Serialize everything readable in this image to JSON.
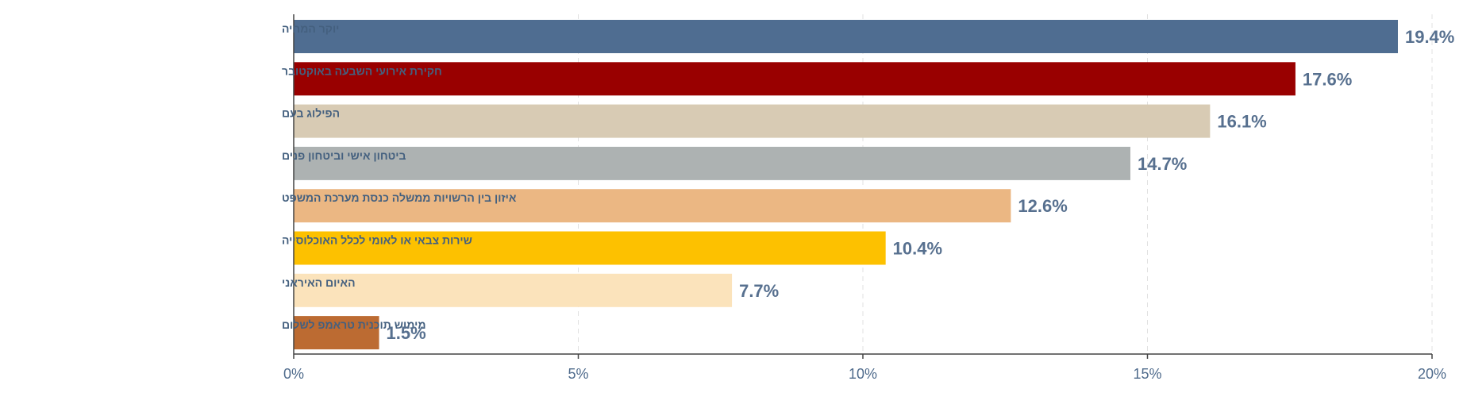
{
  "chart_data": {
    "type": "bar",
    "orientation": "horizontal",
    "categories": [
      "יוקר המחיה",
      "חקירת אירועי השבעה באוקטובר",
      "הפילוג בעם",
      "ביטחון אישי וביטחון פנים",
      "איזון בין הרשויות ממשלה כנסת מערכת המשפט",
      "שירות צבאי או לאומי לכלל האוכלוסייה",
      "האיום האיראני",
      "מימוש תוכנית טראמפ לשלום"
    ],
    "values": [
      19.4,
      17.6,
      16.1,
      14.7,
      12.6,
      10.4,
      7.7,
      1.5
    ],
    "value_labels": [
      "19.4%",
      "17.6%",
      "16.1%",
      "14.7%",
      "12.6%",
      "10.4%",
      "7.7%",
      "1.5%"
    ],
    "colors": [
      "#4f6d91",
      "#990000",
      "#d8cbb4",
      "#adb2b2",
      "#ebb783",
      "#fdc100",
      "#fbe3bb",
      "#bc6b32"
    ],
    "xlim": [
      0,
      20
    ],
    "xticks": [
      0,
      5,
      10,
      15,
      20
    ],
    "xtick_labels": [
      "0%",
      "5%",
      "10%",
      "15%",
      "20%"
    ],
    "grid": "vertical dashed",
    "title": "",
    "xlabel": "",
    "ylabel": ""
  }
}
